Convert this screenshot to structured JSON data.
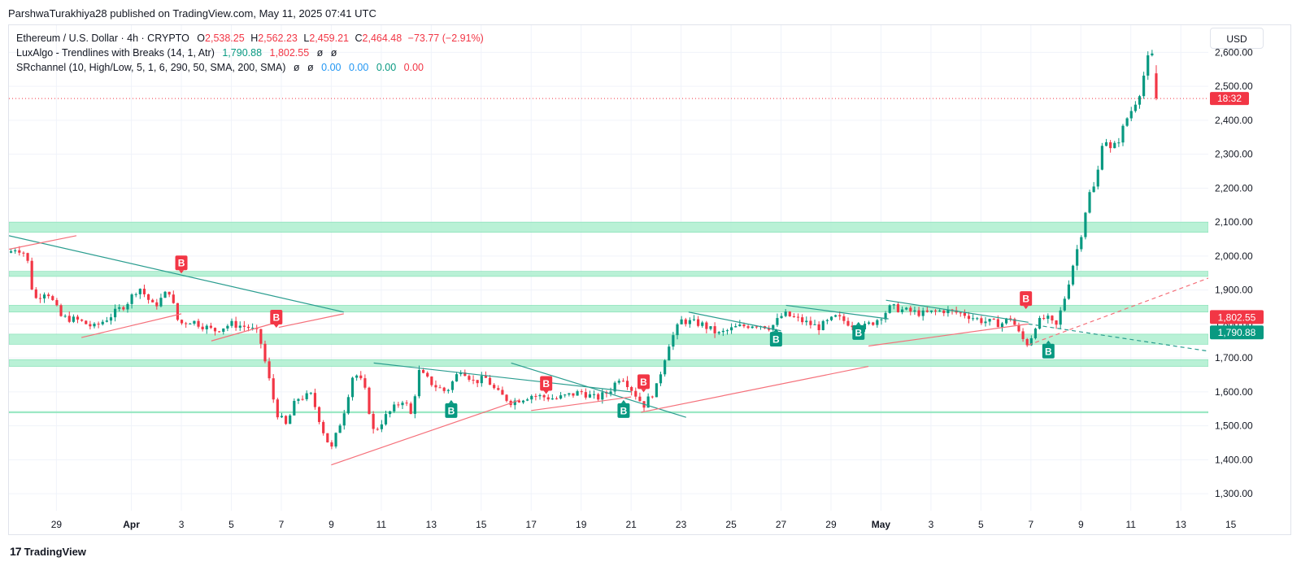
{
  "header": {
    "published_text": "ParshwaTurakhiya28 published on TradingView.com, May 11, 2025 07:41 UTC"
  },
  "legend": {
    "symbol": "Ethereum / U.S. Dollar · 4h · CRYPTO",
    "o_label": "O",
    "o_value": "2,538.25",
    "h_label": "H",
    "h_value": "2,562.23",
    "l_label": "L",
    "l_value": "2,459.21",
    "c_label": "C",
    "c_value": "2,464.48",
    "change": "−73.77 (−2.91%)",
    "luxalgo_name": "LuxAlgo - Trendlines with Breaks (14, 1, Atr)",
    "luxalgo_v1": "1,790.88",
    "luxalgo_v2": "1,802.55",
    "luxalgo_v3": "ø",
    "luxalgo_v4": "ø",
    "sr_name": "SRchannel (10, High/Low, 5, 1, 6, 290, 50, SMA, 200, SMA)",
    "sr_v1": "ø",
    "sr_v2": "ø",
    "sr_v3": "0.00",
    "sr_v4": "0.00",
    "sr_v5": "0.00",
    "sr_v6": "0.00"
  },
  "currency_button": "USD",
  "footer": {
    "logo_mark": "17",
    "brand": "TradingView"
  },
  "colors": {
    "up": "#089981",
    "down": "#f23645",
    "zone": "#b2f0d2",
    "zone_line": "#6fdba8",
    "trend_down": "#2a9d8f",
    "trend_up": "#f5707a",
    "grid": "#f0f3fa"
  },
  "chart_data": {
    "type": "candlestick",
    "ylim": [
      1250,
      2680
    ],
    "yticks": [
      1300,
      1400,
      1500,
      1600,
      1700,
      1800,
      1900,
      2000,
      2100,
      2200,
      2300,
      2400,
      2500,
      2600
    ],
    "ytick_labels": [
      "1,300.00",
      "1,400.00",
      "1,500.00",
      "1,600.00",
      "1,700.00",
      "1,800.00",
      "1,900.00",
      "2,000.00",
      "2,100.00",
      "2,200.00",
      "2,300.00",
      "2,400.00",
      "2,500.00",
      "2,600.00"
    ],
    "xlim": [
      -1.9,
      46.1
    ],
    "xticks": [
      {
        "x": 0,
        "label": "29"
      },
      {
        "x": 3,
        "label": "Apr"
      },
      {
        "x": 5,
        "label": "3"
      },
      {
        "x": 7,
        "label": "5"
      },
      {
        "x": 9,
        "label": "7"
      },
      {
        "x": 11,
        "label": "9"
      },
      {
        "x": 13,
        "label": "11"
      },
      {
        "x": 15,
        "label": "13"
      },
      {
        "x": 17,
        "label": "15"
      },
      {
        "x": 19,
        "label": "17"
      },
      {
        "x": 21,
        "label": "19"
      },
      {
        "x": 23,
        "label": "21"
      },
      {
        "x": 25,
        "label": "23"
      },
      {
        "x": 27,
        "label": "25"
      },
      {
        "x": 29,
        "label": "27"
      },
      {
        "x": 31,
        "label": "29"
      },
      {
        "x": 33,
        "label": "May"
      },
      {
        "x": 35,
        "label": "3"
      },
      {
        "x": 37,
        "label": "5"
      },
      {
        "x": 39,
        "label": "7"
      },
      {
        "x": 41,
        "label": "9"
      },
      {
        "x": 43,
        "label": "11"
      },
      {
        "x": 45,
        "label": "13"
      },
      {
        "x": 47,
        "label": "15"
      }
    ],
    "path_points": [
      [
        -1.9,
        2010
      ],
      [
        -1.6,
        2025
      ],
      [
        -1.2,
        2005
      ],
      [
        -0.9,
        1870
      ],
      [
        -0.4,
        1900
      ],
      [
        0.2,
        1820
      ],
      [
        0.9,
        1810
      ],
      [
        1.5,
        1790
      ],
      [
        2.1,
        1820
      ],
      [
        2.8,
        1860
      ],
      [
        3.3,
        1910
      ],
      [
        3.9,
        1850
      ],
      [
        4.5,
        1900
      ],
      [
        4.9,
        1800
      ],
      [
        5.4,
        1810
      ],
      [
        6.3,
        1780
      ],
      [
        7.0,
        1800
      ],
      [
        7.7,
        1790
      ],
      [
        8.1,
        1770
      ],
      [
        8.5,
        1640
      ],
      [
        8.8,
        1540
      ],
      [
        9.2,
        1500
      ],
      [
        9.6,
        1580
      ],
      [
        10.2,
        1590
      ],
      [
        10.7,
        1480
      ],
      [
        11.0,
        1430
      ],
      [
        11.5,
        1540
      ],
      [
        11.9,
        1660
      ],
      [
        12.3,
        1620
      ],
      [
        12.7,
        1480
      ],
      [
        13.2,
        1530
      ],
      [
        13.9,
        1580
      ],
      [
        14.2,
        1530
      ],
      [
        14.5,
        1660
      ],
      [
        15.1,
        1620
      ],
      [
        15.6,
        1600
      ],
      [
        16.2,
        1670
      ],
      [
        16.7,
        1630
      ],
      [
        17.2,
        1640
      ],
      [
        17.6,
        1600
      ],
      [
        18.2,
        1570
      ],
      [
        19.0,
        1590
      ],
      [
        20.0,
        1580
      ],
      [
        21.0,
        1600
      ],
      [
        21.6,
        1580
      ],
      [
        22.1,
        1600
      ],
      [
        22.6,
        1650
      ],
      [
        23.0,
        1610
      ],
      [
        23.5,
        1560
      ],
      [
        24.0,
        1610
      ],
      [
        24.5,
        1740
      ],
      [
        25.0,
        1810
      ],
      [
        25.8,
        1800
      ],
      [
        26.5,
        1770
      ],
      [
        27.2,
        1790
      ],
      [
        28.0,
        1800
      ],
      [
        28.6,
        1790
      ],
      [
        29.1,
        1830
      ],
      [
        29.8,
        1810
      ],
      [
        30.5,
        1790
      ],
      [
        31.2,
        1820
      ],
      [
        31.8,
        1800
      ],
      [
        32.3,
        1790
      ],
      [
        32.8,
        1810
      ],
      [
        33.4,
        1850
      ],
      [
        33.9,
        1840
      ],
      [
        34.7,
        1830
      ],
      [
        35.5,
        1840
      ],
      [
        36.3,
        1830
      ],
      [
        37.0,
        1810
      ],
      [
        37.8,
        1800
      ],
      [
        38.2,
        1820
      ],
      [
        38.6,
        1760
      ],
      [
        38.9,
        1740
      ],
      [
        39.2,
        1800
      ],
      [
        39.6,
        1820
      ],
      [
        40.0,
        1790
      ],
      [
        40.4,
        1890
      ],
      [
        40.7,
        1980
      ],
      [
        41.0,
        2060
      ],
      [
        41.3,
        2180
      ],
      [
        41.6,
        2210
      ],
      [
        41.9,
        2360
      ],
      [
        42.2,
        2310
      ],
      [
        42.5,
        2340
      ],
      [
        42.8,
        2400
      ],
      [
        43.1,
        2440
      ],
      [
        43.4,
        2490
      ],
      [
        43.65,
        2580
      ],
      [
        43.85,
        2590
      ],
      [
        44.1,
        2464
      ]
    ],
    "sr_zones": [
      [
        2070,
        2100
      ],
      [
        1940,
        1955
      ],
      [
        1835,
        1855
      ],
      [
        1740,
        1770
      ],
      [
        1675,
        1695
      ],
      [
        1538,
        1542
      ]
    ],
    "trendlines_down": [
      [
        [
          -1.9,
          2060
        ],
        [
          11.5,
          1835
        ]
      ],
      [
        [
          12.7,
          1685
        ],
        [
          23.0,
          1600
        ]
      ],
      [
        [
          18.2,
          1685
        ],
        [
          25.2,
          1525
        ]
      ],
      [
        [
          25.3,
          1835
        ],
        [
          29.0,
          1780
        ]
      ],
      [
        [
          29.2,
          1855
        ],
        [
          33.3,
          1815
        ]
      ],
      [
        [
          33.2,
          1870
        ],
        [
          38.9,
          1805
        ]
      ],
      [
        [
          38.9,
          1800
        ],
        [
          46.1,
          1720
        ]
      ]
    ],
    "trendlines_up": [
      [
        [
          -1.9,
          2020
        ],
        [
          0.8,
          2060
        ]
      ],
      [
        [
          1.0,
          1760
        ],
        [
          5.0,
          1830
        ]
      ],
      [
        [
          6.2,
          1750
        ],
        [
          8.6,
          1800
        ]
      ],
      [
        [
          8.9,
          1790
        ],
        [
          11.5,
          1830
        ]
      ],
      [
        [
          11.0,
          1385
        ],
        [
          18.5,
          1575
        ]
      ],
      [
        [
          19.0,
          1545
        ],
        [
          23.0,
          1585
        ]
      ],
      [
        [
          23.4,
          1540
        ],
        [
          32.5,
          1675
        ]
      ],
      [
        [
          32.5,
          1735
        ],
        [
          38.9,
          1800
        ]
      ],
      [
        [
          38.9,
          1738
        ],
        [
          46.1,
          1935
        ]
      ]
    ],
    "break_labels": [
      {
        "x": 5.0,
        "price": 1980,
        "label": "B",
        "dir": "down"
      },
      {
        "x": 8.8,
        "price": 1820,
        "label": "B",
        "dir": "down"
      },
      {
        "x": 15.8,
        "price": 1545,
        "label": "B",
        "dir": "up"
      },
      {
        "x": 19.6,
        "price": 1625,
        "label": "B",
        "dir": "down"
      },
      {
        "x": 22.7,
        "price": 1545,
        "label": "B",
        "dir": "up"
      },
      {
        "x": 23.5,
        "price": 1630,
        "label": "B",
        "dir": "down"
      },
      {
        "x": 28.8,
        "price": 1755,
        "label": "B",
        "dir": "up"
      },
      {
        "x": 32.1,
        "price": 1775,
        "label": "B",
        "dir": "up"
      },
      {
        "x": 38.8,
        "price": 1875,
        "label": "B",
        "dir": "down"
      },
      {
        "x": 39.7,
        "price": 1720,
        "label": "B",
        "dir": "up"
      }
    ],
    "last_price": 2464,
    "last_price_label": "18:32",
    "indicator_labels": [
      {
        "price": 1802.55,
        "label": "1,802.55",
        "color": "#f23645"
      },
      {
        "price": 1790.88,
        "label": "1,790.88",
        "color": "#089981"
      }
    ]
  }
}
